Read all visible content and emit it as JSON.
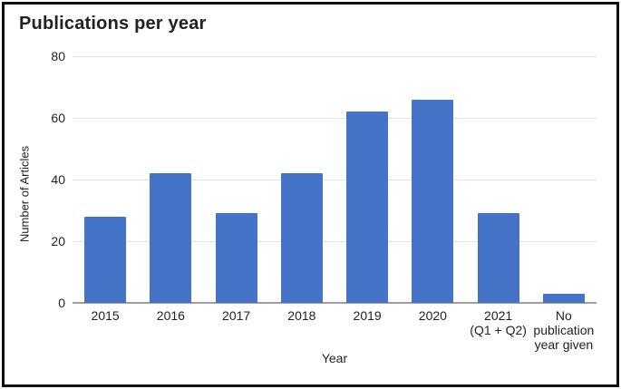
{
  "title": "Publications per year",
  "chart_data": {
    "type": "bar",
    "title": "Publications per year",
    "categories": [
      "2015",
      "2016",
      "2017",
      "2018",
      "2019",
      "2020",
      "2021\n(Q1 + Q2)",
      "No\npublication\nyear given"
    ],
    "values": [
      28,
      42,
      29,
      42,
      62,
      66,
      29,
      3
    ],
    "xlabel": "Year",
    "ylabel": "Number of Articles",
    "ylim": [
      0,
      80
    ],
    "yticks": [
      0,
      20,
      40,
      60,
      80
    ],
    "grid": true,
    "legend": "none",
    "bar_color": "#4573c8"
  },
  "colors": {
    "bar": "#4573c8",
    "gridline": "#e3e3e3",
    "axis_line": "#9e9e9e",
    "text": "#212121",
    "border": "#111111",
    "background": "#ffffff"
  }
}
